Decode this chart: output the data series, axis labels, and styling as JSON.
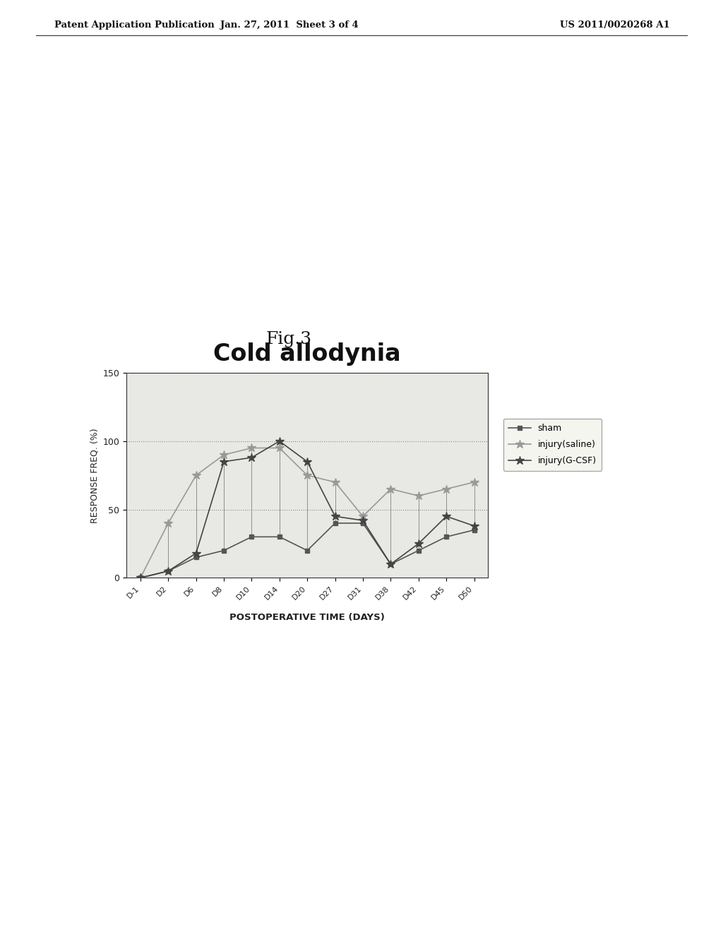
{
  "title": "Cold allodynia",
  "xlabel": "POSTOPERATIVE TIME (DAYS)",
  "ylabel": "RESPONSE FREQ. (%)",
  "x_labels": [
    "D-1",
    "D2",
    "D6",
    "D8",
    "D10",
    "D14",
    "D20",
    "D27",
    "D31",
    "D38",
    "D42",
    "D45",
    "D50"
  ],
  "ylim": [
    0,
    150
  ],
  "yticks": [
    0,
    50,
    100,
    150
  ],
  "sham": [
    0,
    5,
    15,
    20,
    30,
    30,
    20,
    40,
    40,
    10,
    20,
    30,
    35
  ],
  "injury_saline": [
    0,
    40,
    75,
    90,
    95,
    95,
    75,
    70,
    45,
    65,
    60,
    65,
    70
  ],
  "injury_gcsf": [
    0,
    5,
    18,
    85,
    88,
    100,
    85,
    45,
    42,
    10,
    25,
    45,
    38
  ],
  "sham_color": "#555555",
  "injury_saline_color": "#999999",
  "injury_gcsf_color": "#444444",
  "header_left": "Patent Application Publication",
  "header_center": "Jan. 27, 2011  Sheet 3 of 4",
  "header_right": "US 2011/0020268 A1",
  "fig_label": "Fig.3",
  "background_color": "#ffffff",
  "plot_bg": "#e8e8e4"
}
